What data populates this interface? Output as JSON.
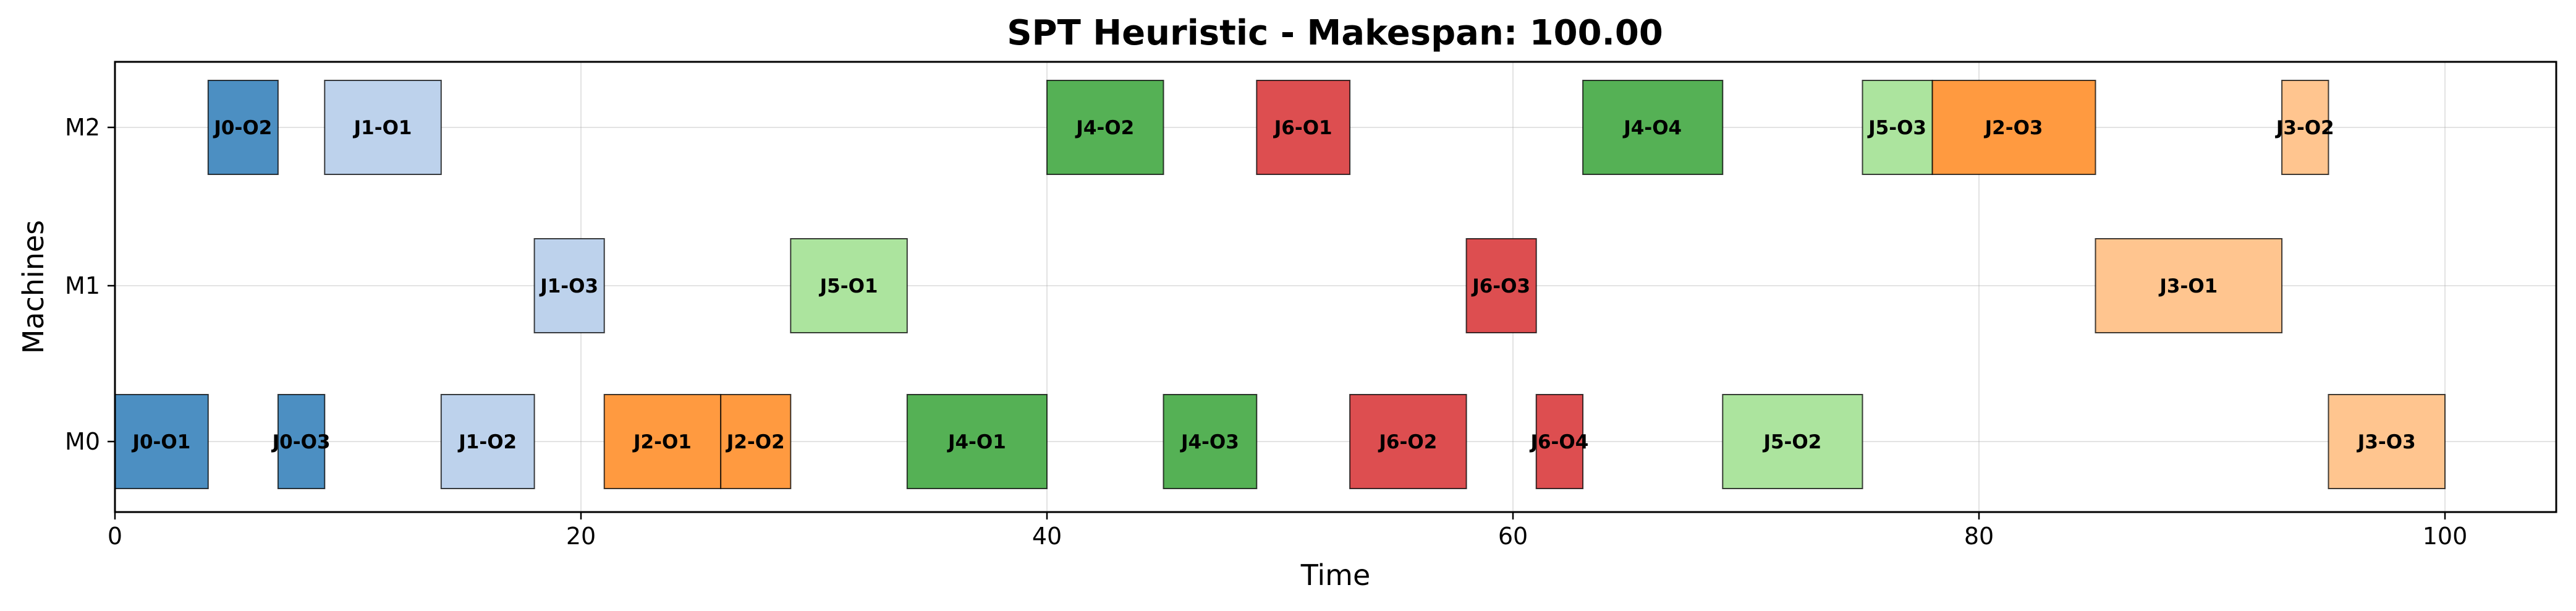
{
  "chart_data": {
    "type": "gantt",
    "title": "SPT Heuristic - Makespan: 100.00",
    "xlabel": "Time",
    "ylabel": "Machines",
    "xlim": [
      0,
      105
    ],
    "x_ticks": [
      0,
      20,
      40,
      60,
      80,
      100
    ],
    "machines": [
      "M0",
      "M1",
      "M2"
    ],
    "grid": true,
    "job_colors": {
      "J0": "#4c8fc2",
      "J1": "#bdd2ec",
      "J2": "#ff9a40",
      "J3": "#ffc58f",
      "J4": "#55b155",
      "J5": "#ace49e",
      "J6": "#dd4e50"
    },
    "tasks": [
      {
        "label": "J0-O1",
        "job": "J0",
        "machine": "M0",
        "start": 0,
        "end": 4
      },
      {
        "label": "J0-O2",
        "job": "J0",
        "machine": "M2",
        "start": 4,
        "end": 7
      },
      {
        "label": "J0-O3",
        "job": "J0",
        "machine": "M0",
        "start": 7,
        "end": 9
      },
      {
        "label": "J1-O1",
        "job": "J1",
        "machine": "M2",
        "start": 9,
        "end": 14
      },
      {
        "label": "J1-O2",
        "job": "J1",
        "machine": "M0",
        "start": 14,
        "end": 18
      },
      {
        "label": "J1-O3",
        "job": "J1",
        "machine": "M1",
        "start": 18,
        "end": 21
      },
      {
        "label": "J2-O1",
        "job": "J2",
        "machine": "M0",
        "start": 21,
        "end": 26
      },
      {
        "label": "J2-O2",
        "job": "J2",
        "machine": "M0",
        "start": 26,
        "end": 29
      },
      {
        "label": "J5-O1",
        "job": "J5",
        "machine": "M1",
        "start": 29,
        "end": 34
      },
      {
        "label": "J4-O1",
        "job": "J4",
        "machine": "M0",
        "start": 34,
        "end": 40
      },
      {
        "label": "J4-O2",
        "job": "J4",
        "machine": "M2",
        "start": 40,
        "end": 45
      },
      {
        "label": "J4-O3",
        "job": "J4",
        "machine": "M0",
        "start": 45,
        "end": 49
      },
      {
        "label": "J6-O1",
        "job": "J6",
        "machine": "M2",
        "start": 49,
        "end": 53
      },
      {
        "label": "J6-O2",
        "job": "J6",
        "machine": "M0",
        "start": 53,
        "end": 58
      },
      {
        "label": "J6-O3",
        "job": "J6",
        "machine": "M1",
        "start": 58,
        "end": 61
      },
      {
        "label": "J6-O4",
        "job": "J6",
        "machine": "M0",
        "start": 61,
        "end": 63
      },
      {
        "label": "J4-O4",
        "job": "J4",
        "machine": "M2",
        "start": 63,
        "end": 69
      },
      {
        "label": "J5-O2",
        "job": "J5",
        "machine": "M0",
        "start": 69,
        "end": 75
      },
      {
        "label": "J5-O3",
        "job": "J5",
        "machine": "M2",
        "start": 75,
        "end": 78
      },
      {
        "label": "J2-O3",
        "job": "J2",
        "machine": "M2",
        "start": 78,
        "end": 85
      },
      {
        "label": "J3-O1",
        "job": "J3",
        "machine": "M1",
        "start": 85,
        "end": 93
      },
      {
        "label": "J3-O2",
        "job": "J3",
        "machine": "M2",
        "start": 93,
        "end": 95
      },
      {
        "label": "J3-O3",
        "job": "J3",
        "machine": "M0",
        "start": 95,
        "end": 100
      }
    ]
  }
}
